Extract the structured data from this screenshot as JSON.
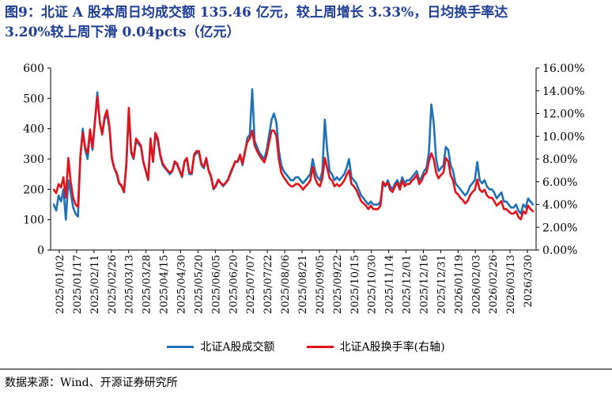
{
  "title_line1": "图9：北证 A 股本周日均成交额 135.46 亿元，较上周增长 3.33%，日均换手率达",
  "title_line2": "3.20%较上周下滑 0.04pcts（亿元）",
  "source": "数据来源：Wind、开源证券研究所",
  "chart_data": {
    "type": "line",
    "title": "",
    "xlabel": "",
    "ylabel": "",
    "y_left": {
      "min": 0,
      "max": 600,
      "ticks": [
        "0",
        "100",
        "200",
        "300",
        "400",
        "500",
        "600"
      ]
    },
    "y_right": {
      "min": 0,
      "max": 16,
      "ticks": [
        "0.00%",
        "2.00%",
        "4.00%",
        "6.00%",
        "8.00%",
        "10.00%",
        "12.00%",
        "14.00%",
        "16.00%"
      ]
    },
    "x_tick_labels": [
      "2025/01/02",
      "2025/01/17",
      "2025/02/11",
      "2025/02/26",
      "2025/03/13",
      "2025/03/28",
      "2025/04/15",
      "2025/04/30",
      "2025/05/20",
      "2025/06/05",
      "2025/06/20",
      "2025/07/07",
      "2025/07/22",
      "2025/08/06",
      "2025/08/21",
      "2025/09/05",
      "2025/09/22",
      "2025/10/15",
      "2025/10/30",
      "2025/11/14",
      "2025/12/01",
      "2025/12/16",
      "2025/12/31",
      "2026/01/19",
      "2026/02/03",
      "2026/02/26",
      "2026/03/13",
      "2026/3/30"
    ],
    "grid": false,
    "legend_position": "bottom",
    "series": [
      {
        "name": "北证A股成交额",
        "axis": "left",
        "color": "#1f72b8",
        "values": [
          150,
          130,
          180,
          160,
          200,
          100,
          230,
          190,
          140,
          120,
          110,
          310,
          400,
          330,
          300,
          390,
          330,
          420,
          520,
          420,
          380,
          430,
          450,
          400,
          300,
          270,
          250,
          220,
          210,
          190,
          280,
          460,
          320,
          300,
          360,
          350,
          340,
          290,
          260,
          230,
          360,
          290,
          380,
          360,
          310,
          280,
          270,
          260,
          250,
          260,
          290,
          280,
          260,
          240,
          290,
          300,
          250,
          250,
          310,
          320,
          320,
          280,
          270,
          300,
          260,
          240,
          200,
          210,
          230,
          220,
          210,
          220,
          230,
          250,
          270,
          290,
          290,
          310,
          280,
          320,
          370,
          380,
          530,
          360,
          340,
          320,
          310,
          300,
          330,
          380,
          430,
          450,
          420,
          330,
          280,
          260,
          250,
          240,
          230,
          230,
          240,
          240,
          230,
          220,
          230,
          240,
          250,
          300,
          260,
          240,
          230,
          260,
          430,
          330,
          260,
          250,
          230,
          240,
          230,
          240,
          250,
          270,
          300,
          240,
          230,
          220,
          200,
          180,
          170,
          160,
          150,
          160,
          150,
          150,
          150,
          160,
          220,
          210,
          230,
          210,
          200,
          220,
          230,
          210,
          240,
          220,
          230,
          230,
          240,
          250,
          260,
          230,
          240,
          260,
          270,
          320,
          480,
          420,
          300,
          260,
          270,
          280,
          340,
          330,
          280,
          260,
          220,
          210,
          200,
          190,
          180,
          190,
          210,
          220,
          230,
          290,
          230,
          220,
          230,
          210,
          200,
          200,
          190,
          170,
          180,
          190,
          160,
          160,
          150,
          140,
          140,
          150,
          130,
          120,
          150,
          140,
          170,
          160,
          150
        ],
        "point_count": 201
      },
      {
        "name": "北证A股换手率(右轴)",
        "axis": "right",
        "color": "#e3131b",
        "values": [
          5.3,
          5.0,
          5.8,
          5.5,
          6.4,
          4.6,
          8.1,
          6.0,
          4.6,
          4.0,
          3.8,
          8.3,
          10.3,
          9.0,
          8.5,
          10.6,
          9.0,
          11.3,
          13.5,
          11.3,
          10.2,
          11.7,
          12.3,
          10.9,
          8.1,
          7.2,
          6.8,
          5.9,
          5.7,
          5.1,
          7.6,
          12.5,
          8.7,
          8.1,
          9.8,
          9.5,
          9.2,
          7.8,
          7.0,
          6.2,
          9.8,
          7.8,
          10.3,
          9.8,
          8.4,
          7.6,
          7.3,
          7.0,
          6.8,
          7.0,
          7.8,
          7.6,
          7.0,
          6.5,
          7.8,
          8.1,
          6.8,
          6.8,
          8.4,
          8.7,
          8.7,
          7.6,
          7.3,
          8.1,
          7.0,
          6.5,
          5.4,
          5.7,
          6.2,
          5.9,
          5.7,
          5.9,
          6.2,
          6.8,
          7.3,
          7.8,
          7.8,
          8.4,
          7.6,
          8.7,
          9.5,
          9.8,
          10.5,
          9.2,
          8.7,
          8.3,
          8.0,
          7.7,
          8.4,
          9.5,
          10.5,
          10.5,
          10.0,
          8.0,
          6.8,
          6.4,
          6.1,
          5.8,
          5.6,
          5.6,
          5.8,
          5.8,
          5.6,
          5.3,
          5.6,
          5.8,
          6.1,
          7.3,
          6.3,
          5.8,
          5.6,
          6.3,
          8.1,
          7.2,
          6.3,
          6.1,
          5.6,
          5.8,
          5.6,
          5.8,
          6.1,
          6.6,
          7.0,
          5.8,
          5.6,
          5.3,
          4.8,
          4.3,
          4.1,
          3.9,
          3.6,
          3.9,
          3.6,
          3.6,
          3.6,
          3.9,
          6.0,
          5.7,
          5.9,
          5.3,
          5.1,
          5.6,
          5.9,
          5.3,
          6.1,
          5.6,
          5.8,
          5.8,
          6.1,
          6.3,
          6.6,
          5.8,
          6.1,
          6.6,
          6.8,
          7.8,
          8.5,
          8.0,
          6.8,
          6.3,
          6.6,
          6.8,
          8.1,
          7.8,
          6.6,
          6.1,
          5.1,
          4.9,
          4.6,
          4.4,
          4.1,
          4.3,
          4.8,
          5.1,
          5.3,
          6.2,
          5.3,
          5.1,
          5.3,
          4.8,
          4.6,
          4.6,
          4.3,
          3.9,
          4.1,
          4.3,
          3.6,
          3.6,
          3.4,
          3.2,
          3.2,
          3.4,
          2.9,
          2.7,
          3.4,
          3.2,
          3.9,
          3.6,
          3.4
        ],
        "point_count": 201
      }
    ]
  }
}
